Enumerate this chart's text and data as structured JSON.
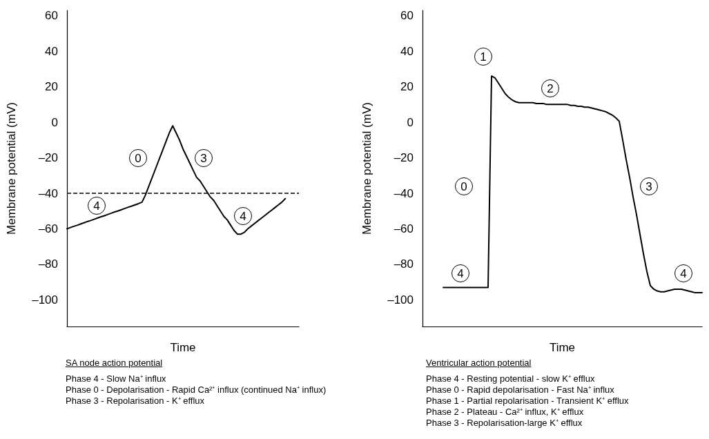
{
  "chart_data": [
    {
      "type": "line",
      "title": "SA node action potential",
      "xlabel": "Time",
      "ylabel": "Membrane potential (mV)",
      "color": "#000000",
      "tick_labels": "y",
      "categories": [
        null,
        null,
        null,
        null,
        null,
        null,
        null,
        null,
        null,
        null,
        null,
        null,
        null,
        null,
        null,
        null,
        null,
        null,
        null,
        null,
        null,
        null,
        null,
        null,
        null,
        null,
        null,
        null,
        null,
        null,
        null,
        null,
        null,
        null,
        null,
        null,
        null,
        null,
        null,
        null,
        null,
        null,
        null,
        null,
        null,
        null,
        null,
        null,
        null,
        null,
        null,
        null,
        null,
        null,
        null,
        null,
        null,
        null,
        null,
        null,
        null,
        null,
        null,
        null,
        null,
        null,
        null,
        null,
        null
      ],
      "values": [
        -60,
        -59.3,
        -58.6,
        -58,
        -57.3,
        -56.6,
        -55.9,
        -55.3,
        -54.6,
        -53.9,
        -53.2,
        -52.6,
        -51.9,
        -51.2,
        -50.5,
        -49.9,
        -49.2,
        -48.5,
        -47.8,
        -47.2,
        -46.5,
        -45.8,
        -45,
        -41,
        -36,
        -31,
        -26,
        -21,
        -16,
        -11,
        -6,
        -2,
        -6,
        -10,
        -15,
        -19,
        -23,
        -27,
        -31,
        -33,
        -36,
        -39,
        -42,
        -44,
        -47,
        -50,
        -53,
        -55,
        -58,
        -61,
        -63,
        -63,
        -62,
        -60,
        -58.5,
        -57,
        -55.5,
        -54,
        -52.5,
        -51,
        -49.5,
        -48,
        -46.5,
        -45,
        -43,
        null,
        null,
        null,
        null
      ],
      "ylim": [
        -115,
        63
      ],
      "yticks": [
        60,
        40,
        20,
        0,
        {
          "value": -20,
          "label": "–20"
        },
        {
          "value": -40,
          "label": "–40"
        },
        {
          "value": -60,
          "label": "–60"
        },
        {
          "value": -80,
          "label": "–80"
        },
        {
          "value": -100,
          "label": "–100"
        }
      ],
      "ref_lines": [
        {
          "axis": "y",
          "value": -40,
          "line_style": "dashed",
          "color": "#000000"
        }
      ],
      "annotations": [
        {
          "text": "4",
          "y": -47
        },
        {
          "text": "0",
          "y": -20
        },
        {
          "text": "3",
          "y": -20
        },
        {
          "text": "4",
          "y": -53
        },
        "Phase 4 - Slow Na⁺ influx",
        "Phase 0 - Depolarisation - Rapid Ca²⁺ influx (continued Na⁺ influx)",
        "Phase 3 - Repolarisation - K⁺ efflux"
      ]
    },
    {
      "type": "line",
      "title": "Ventricular action potential",
      "xlabel": "Time",
      "ylabel": "Membrane potential (mV)",
      "color": "#000000",
      "tick_labels": "y",
      "categories": [
        null,
        null,
        null,
        null,
        null,
        null,
        null,
        null,
        null,
        null,
        null,
        null,
        null,
        null,
        null,
        null,
        null,
        null,
        null,
        null,
        null,
        null,
        null,
        null,
        null,
        null,
        null,
        null,
        null,
        null,
        null,
        null,
        null,
        null,
        null,
        null,
        null,
        null,
        null,
        null,
        null,
        null,
        null,
        null,
        null,
        null,
        null,
        null,
        null,
        null,
        null,
        null,
        null,
        null,
        null,
        null,
        null,
        null,
        null,
        null,
        null,
        null,
        null,
        null,
        null,
        null,
        null,
        null,
        null,
        null,
        null,
        null,
        null,
        null,
        null,
        null,
        null,
        null,
        null,
        null,
        null,
        null
      ],
      "values": [
        null,
        null,
        null,
        null,
        null,
        null,
        -93,
        -93,
        -93,
        -93,
        -93,
        -93,
        -93,
        -93,
        -93,
        -93,
        -93,
        -93,
        -93,
        -93,
        26,
        25,
        22,
        19,
        16,
        14,
        12.5,
        11.5,
        11,
        11,
        11,
        11,
        11,
        10.5,
        10.5,
        10.5,
        10,
        10,
        10,
        10,
        10,
        10,
        10,
        9.5,
        9.5,
        9,
        9,
        8.5,
        8.5,
        8,
        7.5,
        7,
        6.5,
        6,
        5,
        4,
        2.5,
        0.5,
        -10,
        -21,
        -31,
        -42,
        -52,
        -63,
        -74,
        -84,
        -92,
        -94,
        -95,
        -95.5,
        -95.5,
        -95,
        -94.5,
        -94,
        -94,
        -94,
        -94.5,
        -95,
        -95.5,
        -96,
        -96,
        -96
      ],
      "ylim": [
        -115,
        63
      ],
      "yticks": [
        60,
        40,
        20,
        0,
        {
          "value": -20,
          "label": "–20"
        },
        {
          "value": -40,
          "label": "–40"
        },
        {
          "value": -60,
          "label": "–60"
        },
        {
          "value": -80,
          "label": "–80"
        },
        {
          "value": -100,
          "label": "–100"
        }
      ],
      "annotations": [
        {
          "text": "1",
          "y": 37
        },
        {
          "text": "2",
          "y": 19
        },
        {
          "text": "0",
          "y": -36
        },
        {
          "text": "3",
          "y": -36
        },
        {
          "text": "4",
          "y": -85
        },
        {
          "text": "4",
          "y": -85
        },
        "Phase 4 - Resting potential - slow K⁺ efflux",
        "Phase 0 - Rapid depolarisation - Fast Na⁺ influx",
        "Phase 1 - Partial repolarisation - Transient K⁺ efflux",
        "Phase 2 - Plateau - Ca²⁺ influx, K⁺ efflux",
        "Phase 3 - Repolarisation-large K⁺ efflux"
      ]
    }
  ]
}
